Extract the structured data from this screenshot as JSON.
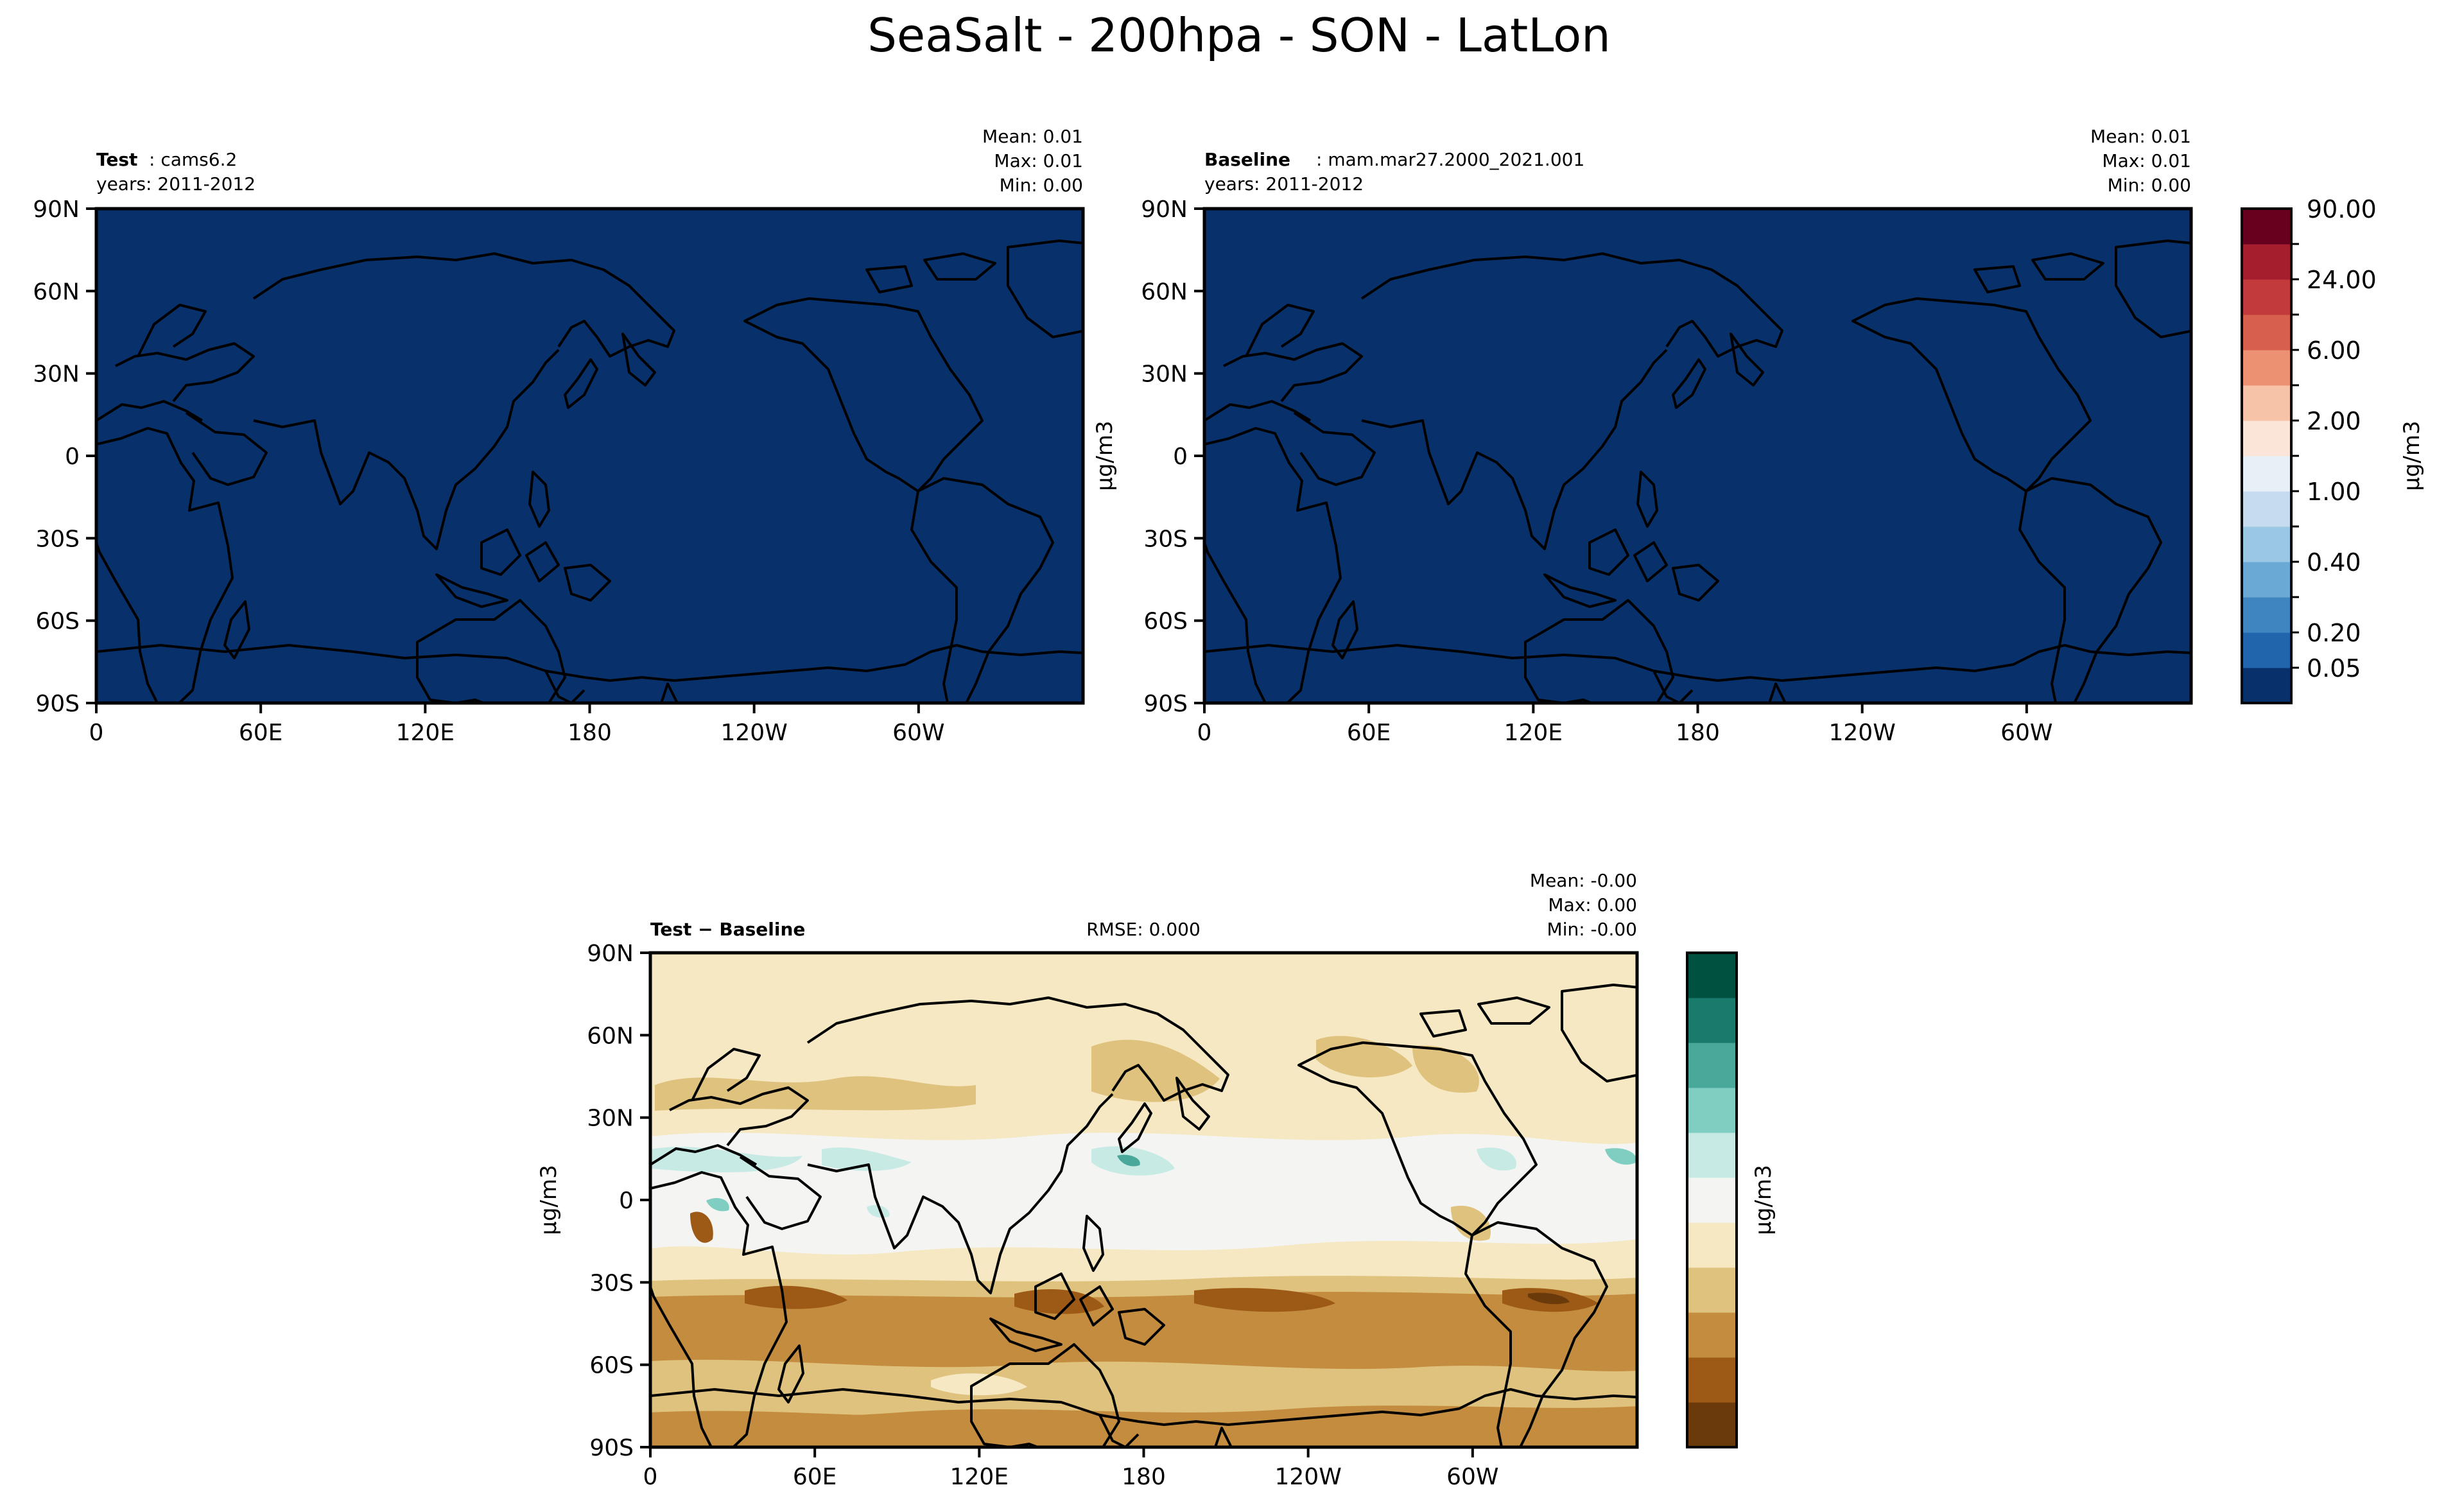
{
  "figure": {
    "title": "SeaSalt - 200hpa - SON - LatLon"
  },
  "colors": {
    "test_fill": "#08306b",
    "diff_cmap": [
      "#6b3a0a",
      "#9c5a16",
      "#c48c3e",
      "#dfc27d",
      "#f6e8c3",
      "#f4f4f2",
      "#c7eae5",
      "#80cdc1",
      "#4aa89b",
      "#1a7a6c",
      "#00513f"
    ],
    "ratio_cmap": [
      "#08306b",
      "#2166ac",
      "#3f86c0",
      "#6aa9d6",
      "#9ac8e4",
      "#c6dcee",
      "#e8f0f7",
      "#fbe5d8",
      "#f6c2a8",
      "#ec9273",
      "#d6604d",
      "#c23a3b",
      "#a51e2e",
      "#67001f"
    ]
  },
  "chart_data": [
    {
      "type": "heatmap",
      "id": "test",
      "title_bold": "Test",
      "title_rest": ": cams6.2",
      "subtitle": "years: 2011-2012",
      "stats": {
        "mean": "Mean:  0.01",
        "max": "Max:  0.01",
        "min": "Min:  0.00"
      },
      "xticks": [
        "0",
        "60E",
        "120E",
        "180",
        "120W",
        "60W"
      ],
      "yticks": [
        "90N",
        "60N",
        "30N",
        "0",
        "30S",
        "60S",
        "90S"
      ],
      "xlim": [
        0,
        360
      ],
      "ylim": [
        -90,
        90
      ]
    },
    {
      "type": "heatmap",
      "id": "baseline",
      "title_bold": "Baseline",
      "title_rest": ": mam.mar27.2000_2021.001",
      "subtitle": "years: 2011-2012",
      "stats": {
        "mean": "Mean:  0.01",
        "max": "Max:  0.01",
        "min": "Min:  0.00"
      },
      "xticks": [
        "0",
        "60E",
        "120E",
        "180",
        "120W",
        "60W"
      ],
      "yticks": [
        "90N",
        "60N",
        "30N",
        "0",
        "30S",
        "60S",
        "90S"
      ],
      "ylabel": "μg/m3",
      "colorbar": {
        "label": "μg/m3",
        "ticks": [
          "90.00",
          "24.00",
          "6.00",
          "2.00",
          "1.00",
          "0.40",
          "0.20",
          "0.05"
        ]
      }
    },
    {
      "type": "heatmap",
      "id": "diff",
      "title_bold": "Test − Baseline",
      "rmse": "RMSE: 0.000",
      "stats": {
        "mean": "Mean: -0.00",
        "max": "Max:  0.00",
        "min": "Min: -0.00"
      },
      "xticks": [
        "0",
        "60E",
        "120E",
        "180",
        "120W",
        "60W"
      ],
      "yticks": [
        "90N",
        "60N",
        "30N",
        "0",
        "30S",
        "60S",
        "90S"
      ],
      "ylabel": "μg/m3",
      "colorbar": {
        "label": "μg/m3"
      }
    }
  ]
}
